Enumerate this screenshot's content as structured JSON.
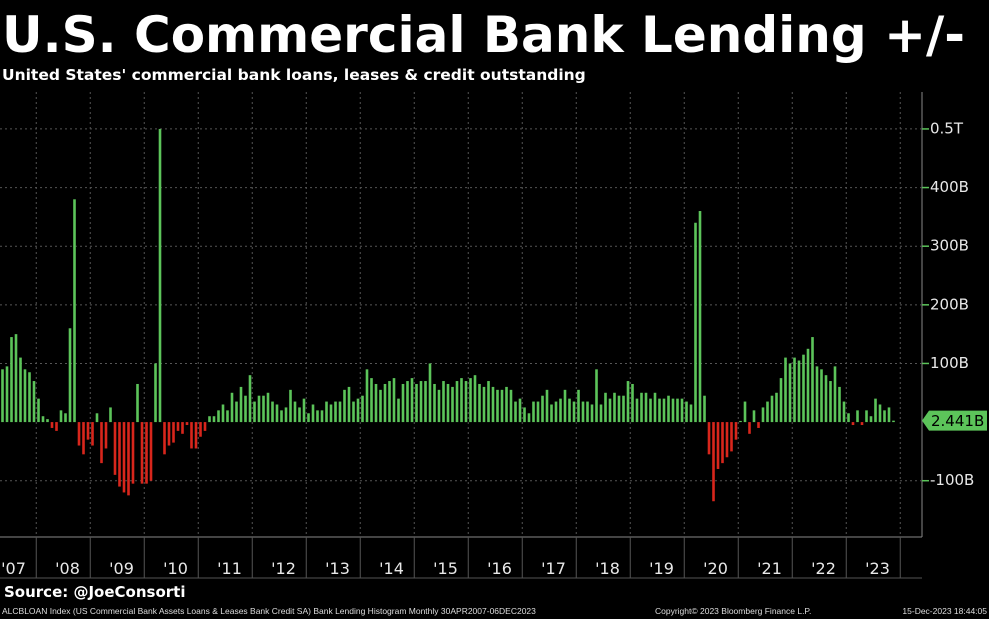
{
  "chart_data": {
    "type": "bar",
    "title": "U.S. Commercial Bank Lending +/-",
    "subtitle": "United States' commercial bank loans, leases & credit outstanding",
    "source": "Source: @JoeConsorti",
    "footer": {
      "left": "ALCBLOAN Index (US Commercial Bank Assets Loans & Leases Bank Credit SA) Bank Lending Histogram  Monthly 30APR2007-06DEC2023",
      "center": "Copyright© 2023 Bloomberg Finance L.P.",
      "right": "15-Dec-2023 18:44:05"
    },
    "colors": {
      "positive": "#5cc45a",
      "negative": "#d8261c"
    },
    "categories": [
      null,
      null,
      null,
      "'07",
      null,
      null,
      null,
      null,
      null,
      null,
      null,
      null,
      null,
      null,
      null,
      "'08",
      null,
      null,
      null,
      null,
      null,
      null,
      null,
      null,
      null,
      null,
      null,
      "'09",
      null,
      null,
      null,
      null,
      null,
      null,
      null,
      null,
      null,
      null,
      null,
      "'10",
      null,
      null,
      null,
      null,
      null,
      null,
      null,
      null,
      null,
      null,
      null,
      "'11",
      null,
      null,
      null,
      null,
      null,
      null,
      null,
      null,
      null,
      null,
      null,
      "'12",
      null,
      null,
      null,
      null,
      null,
      null,
      null,
      null,
      null,
      null,
      null,
      "'13",
      null,
      null,
      null,
      null,
      null,
      null,
      null,
      null,
      null,
      null,
      null,
      "'14",
      null,
      null,
      null,
      null,
      null,
      null,
      null,
      null,
      null,
      null,
      null,
      "'15",
      null,
      null,
      null,
      null,
      null,
      null,
      null,
      null,
      null,
      null,
      null,
      "'16",
      null,
      null,
      null,
      null,
      null,
      null,
      null,
      null,
      null,
      null,
      null,
      "'17",
      null,
      null,
      null,
      null,
      null,
      null,
      null,
      null,
      null,
      null,
      null,
      "'18",
      null,
      null,
      null,
      null,
      null,
      null,
      null,
      null,
      null,
      null,
      null,
      "'19",
      null,
      null,
      null,
      null,
      null,
      null,
      null,
      null,
      null,
      null,
      null,
      "'20",
      null,
      null,
      null,
      null,
      null,
      null,
      null,
      null,
      null,
      null,
      null,
      "'21",
      null,
      null,
      null,
      null,
      null,
      null,
      null,
      null,
      null,
      null,
      null,
      "'22",
      null,
      null,
      null,
      null,
      null,
      null,
      null,
      null,
      null,
      null,
      null,
      "'23",
      null,
      null,
      null,
      null
    ],
    "values": [
      85,
      90,
      95,
      145,
      150,
      110,
      90,
      85,
      70,
      40,
      10,
      5,
      -10,
      -15,
      20,
      15,
      160,
      380,
      -40,
      -55,
      -30,
      -40,
      15,
      -70,
      -45,
      25,
      -90,
      -110,
      -120,
      -125,
      -105,
      65,
      -105,
      -105,
      -100,
      100,
      500,
      -55,
      -40,
      -35,
      -15,
      -20,
      -5,
      -45,
      -45,
      -25,
      -15,
      10,
      10,
      20,
      30,
      20,
      50,
      35,
      60,
      45,
      80,
      35,
      45,
      45,
      50,
      35,
      30,
      20,
      25,
      55,
      35,
      25,
      40,
      15,
      30,
      20,
      20,
      35,
      30,
      35,
      35,
      55,
      60,
      35,
      40,
      45,
      90,
      75,
      65,
      55,
      65,
      70,
      75,
      40,
      65,
      70,
      75,
      65,
      70,
      70,
      100,
      65,
      55,
      70,
      65,
      60,
      70,
      75,
      70,
      75,
      80,
      65,
      60,
      70,
      60,
      55,
      55,
      60,
      55,
      35,
      40,
      25,
      15,
      35,
      35,
      45,
      55,
      30,
      35,
      40,
      55,
      40,
      35,
      55,
      35,
      35,
      30,
      90,
      30,
      50,
      40,
      50,
      45,
      45,
      70,
      65,
      40,
      50,
      50,
      40,
      50,
      40,
      40,
      45,
      40,
      40,
      40,
      35,
      30,
      340,
      360,
      45,
      -55,
      -135,
      -80,
      -70,
      -60,
      -50,
      -30,
      2,
      35,
      -20,
      20,
      -10,
      25,
      35,
      45,
      50,
      75,
      110,
      100,
      110,
      105,
      115,
      125,
      145,
      95,
      90,
      80,
      70,
      95,
      60,
      35,
      15,
      -5,
      20,
      -5,
      20,
      10,
      40,
      30,
      20,
      25,
      2.441
    ],
    "value_labels": [
      null,
      null,
      null,
      null,
      null,
      null,
      null,
      null,
      null,
      null,
      null,
      null,
      null,
      null,
      null,
      null,
      null,
      null,
      null,
      null,
      null,
      null,
      null,
      null,
      null,
      null,
      null,
      null,
      null,
      null,
      null,
      null,
      null,
      null,
      null,
      null,
      null,
      null,
      null,
      null,
      null,
      null,
      null,
      null,
      null,
      null,
      null,
      null,
      null,
      null,
      null,
      null,
      null,
      null,
      null,
      null,
      null,
      null,
      null,
      null,
      null,
      null,
      null,
      null,
      null,
      null,
      null,
      null,
      null,
      null,
      null,
      null,
      null,
      null,
      null,
      null,
      null,
      null,
      null,
      null,
      null,
      null,
      null,
      null,
      null,
      null,
      null,
      null,
      null,
      null,
      null,
      null,
      null,
      null,
      null,
      null,
      null,
      null,
      null,
      null,
      null,
      null,
      null,
      null,
      null,
      null,
      null,
      null,
      null,
      null,
      null,
      null,
      null,
      null,
      null,
      null,
      null,
      null,
      null,
      null,
      null,
      null,
      null,
      null,
      null,
      null,
      null,
      null,
      null,
      null,
      null,
      null,
      null,
      null,
      null,
      null,
      null,
      null,
      null,
      null,
      null,
      null,
      null,
      null,
      null,
      null,
      null,
      null,
      null,
      null,
      null,
      null,
      null,
      null,
      null,
      null,
      null,
      null,
      null,
      null,
      null,
      null,
      null,
      null,
      null,
      null,
      null,
      null,
      null,
      null,
      null,
      null,
      null,
      null,
      null,
      null,
      null,
      null,
      null,
      null,
      null,
      null,
      null,
      null,
      null,
      null,
      null,
      null,
      null,
      null,
      null,
      null,
      null,
      null,
      null,
      null,
      null,
      null,
      null,
      "2.441B"
    ],
    "ylim": [
      -196,
      563
    ],
    "yticks": [
      {
        "value": -100,
        "label": "-100B"
      },
      {
        "value": 100,
        "label": "100B"
      },
      {
        "value": 200,
        "label": "200B"
      },
      {
        "value": 300,
        "label": "300B"
      },
      {
        "value": 400,
        "label": "400B"
      },
      {
        "value": 500,
        "label": "0.5T"
      }
    ],
    "grid": true
  }
}
